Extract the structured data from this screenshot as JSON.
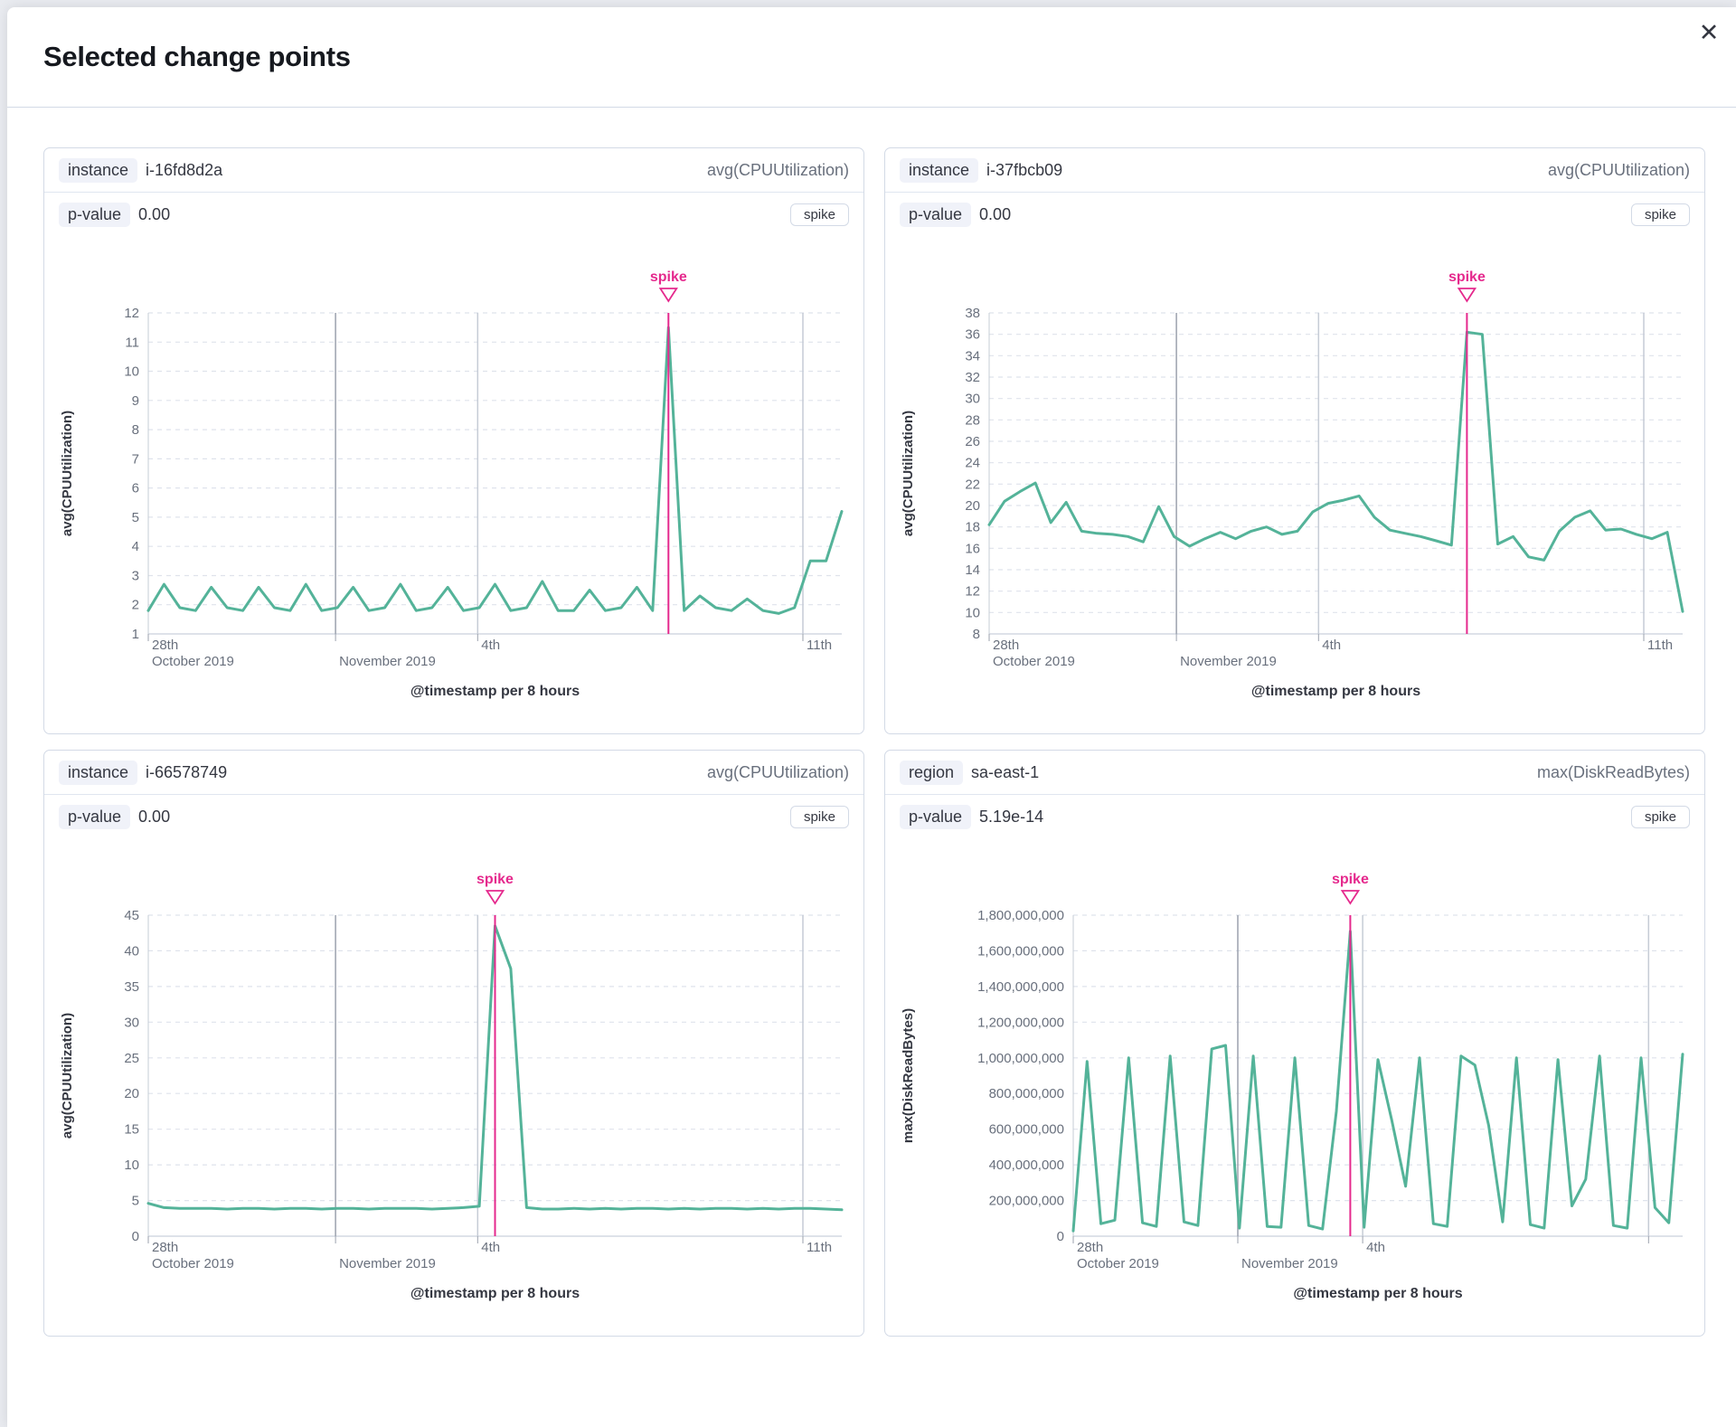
{
  "modal": {
    "title": "Selected change points",
    "close_glyph": "✕"
  },
  "colors": {
    "line_green": "#54b399",
    "spike_pink": "#e5298d",
    "grid_dash": "#dfe3ec",
    "vline_major": "#9ba1ad",
    "vline_minor": "#c6ccd6",
    "axis_line": "#cbd1dc"
  },
  "panels": [
    {
      "key_label": "instance",
      "key_value": "i-16fd8d2a",
      "metric_label": "avg(CPUUtilization)",
      "pvalue_label": "p-value",
      "pvalue": "0.00",
      "change_type": "spike",
      "chart_data": {
        "type": "line",
        "ylabel": "avg(CPUUtilization)",
        "xlabel": "@timestamp per 8 hours",
        "annotation": "spike",
        "y_domain": [
          1,
          12
        ],
        "y_ticks": [
          1,
          2,
          3,
          4,
          5,
          6,
          7,
          8,
          9,
          10,
          11,
          12
        ],
        "x_ticks": [
          {
            "line1": "28th",
            "line2": "October 2019",
            "frac": 0.0,
            "major": false
          },
          {
            "line1": "",
            "line2": "November 2019",
            "frac": 0.27,
            "major": true
          },
          {
            "line1": "4th",
            "line2": "",
            "frac": 0.475,
            "major": false
          },
          {
            "line1": "11th",
            "line2": "",
            "frac": 0.944,
            "major": false
          }
        ],
        "spike_index": 33,
        "values": [
          1.8,
          2.7,
          1.9,
          1.8,
          2.6,
          1.9,
          1.8,
          2.6,
          1.9,
          1.8,
          2.7,
          1.8,
          1.9,
          2.6,
          1.8,
          1.9,
          2.7,
          1.8,
          1.9,
          2.6,
          1.8,
          1.9,
          2.7,
          1.8,
          1.9,
          2.8,
          1.8,
          1.8,
          2.5,
          1.8,
          1.9,
          2.6,
          1.8,
          11.5,
          1.8,
          2.3,
          1.9,
          1.8,
          2.2,
          1.8,
          1.7,
          1.9,
          3.5,
          3.5,
          5.2
        ]
      }
    },
    {
      "key_label": "instance",
      "key_value": "i-37fbcb09",
      "metric_label": "avg(CPUUtilization)",
      "pvalue_label": "p-value",
      "pvalue": "0.00",
      "change_type": "spike",
      "chart_data": {
        "type": "line",
        "ylabel": "avg(CPUUtilization)",
        "xlabel": "@timestamp per 8 hours",
        "annotation": "spike",
        "y_domain": [
          8,
          38
        ],
        "y_ticks": [
          8,
          10,
          12,
          14,
          16,
          18,
          20,
          22,
          24,
          26,
          28,
          30,
          32,
          34,
          36,
          38
        ],
        "x_ticks": [
          {
            "line1": "28th",
            "line2": "October 2019",
            "frac": 0.0,
            "major": false
          },
          {
            "line1": "",
            "line2": "November 2019",
            "frac": 0.27,
            "major": true
          },
          {
            "line1": "4th",
            "line2": "",
            "frac": 0.475,
            "major": false
          },
          {
            "line1": "11th",
            "line2": "",
            "frac": 0.944,
            "major": false
          }
        ],
        "spike_index": 31,
        "values": [
          18.2,
          20.4,
          21.3,
          22.1,
          18.4,
          20.3,
          17.6,
          17.4,
          17.3,
          17.1,
          16.6,
          19.9,
          17.1,
          16.2,
          16.9,
          17.5,
          16.9,
          17.6,
          18.0,
          17.3,
          17.6,
          19.4,
          20.2,
          20.5,
          20.9,
          18.9,
          17.7,
          17.4,
          17.1,
          16.7,
          16.3,
          36.2,
          36.0,
          16.4,
          17.1,
          15.2,
          14.9,
          17.6,
          18.9,
          19.5,
          17.7,
          17.8,
          17.3,
          16.9,
          17.5,
          10.1
        ]
      }
    },
    {
      "key_label": "instance",
      "key_value": "i-66578749",
      "metric_label": "avg(CPUUtilization)",
      "pvalue_label": "p-value",
      "pvalue": "0.00",
      "change_type": "spike",
      "chart_data": {
        "type": "line",
        "ylabel": "avg(CPUUtilization)",
        "xlabel": "@timestamp per 8 hours",
        "annotation": "spike",
        "y_domain": [
          0,
          45
        ],
        "y_ticks": [
          0,
          5,
          10,
          15,
          20,
          25,
          30,
          35,
          40,
          45
        ],
        "x_ticks": [
          {
            "line1": "28th",
            "line2": "October 2019",
            "frac": 0.0,
            "major": false
          },
          {
            "line1": "",
            "line2": "November 2019",
            "frac": 0.27,
            "major": true
          },
          {
            "line1": "4th",
            "line2": "",
            "frac": 0.475,
            "major": false
          },
          {
            "line1": "11th",
            "line2": "",
            "frac": 0.944,
            "major": false
          }
        ],
        "spike_index": 22,
        "values": [
          4.6,
          4.0,
          3.9,
          3.9,
          3.9,
          3.8,
          3.9,
          3.9,
          3.8,
          3.9,
          3.9,
          3.8,
          3.9,
          3.9,
          3.8,
          3.9,
          3.9,
          3.9,
          3.8,
          3.9,
          4.0,
          4.2,
          43.5,
          37.5,
          4.0,
          3.8,
          3.8,
          3.9,
          3.8,
          3.9,
          3.8,
          3.9,
          3.9,
          3.8,
          3.9,
          3.8,
          3.9,
          3.9,
          3.8,
          3.9,
          3.8,
          3.9,
          3.9,
          3.8,
          3.7
        ]
      }
    },
    {
      "key_label": "region",
      "key_value": "sa-east-1",
      "metric_label": "max(DiskReadBytes)",
      "pvalue_label": "p-value",
      "pvalue": "5.19e-14",
      "change_type": "spike",
      "chart_data": {
        "type": "line",
        "ylabel": "max(DiskReadBytes)",
        "xlabel": "@timestamp per 8 hours",
        "annotation": "spike",
        "y_domain": [
          0,
          1800000000
        ],
        "y_ticks": [
          0,
          200000000,
          400000000,
          600000000,
          800000000,
          1000000000,
          1200000000,
          1400000000,
          1600000000,
          1800000000
        ],
        "y_tick_labels": [
          "0",
          "200,000,000",
          "400,000,000",
          "600,000,000",
          "800,000,000",
          "1,000,000,000",
          "1,200,000,000",
          "1,400,000,000",
          "1,600,000,000",
          "1,800,000,000"
        ],
        "x_ticks": [
          {
            "line1": "28th",
            "line2": "October 2019",
            "frac": 0.0,
            "major": false
          },
          {
            "line1": "",
            "line2": "November 2019",
            "frac": 0.27,
            "major": true
          },
          {
            "line1": "4th",
            "line2": "",
            "frac": 0.475,
            "major": false
          },
          {
            "line1": "",
            "line2": "",
            "frac": 0.944,
            "major": false
          }
        ],
        "spike_index": 20,
        "values": [
          30000000,
          980000000,
          70000000,
          90000000,
          1000000000,
          75000000,
          55000000,
          1010000000,
          80000000,
          60000000,
          1050000000,
          1070000000,
          45000000,
          1010000000,
          55000000,
          50000000,
          1000000000,
          60000000,
          40000000,
          700000000,
          1710000000,
          50000000,
          990000000,
          650000000,
          280000000,
          1000000000,
          70000000,
          55000000,
          1010000000,
          960000000,
          620000000,
          80000000,
          1000000000,
          65000000,
          45000000,
          990000000,
          170000000,
          320000000,
          1010000000,
          60000000,
          45000000,
          1000000000,
          160000000,
          75000000,
          1020000000
        ]
      }
    }
  ]
}
